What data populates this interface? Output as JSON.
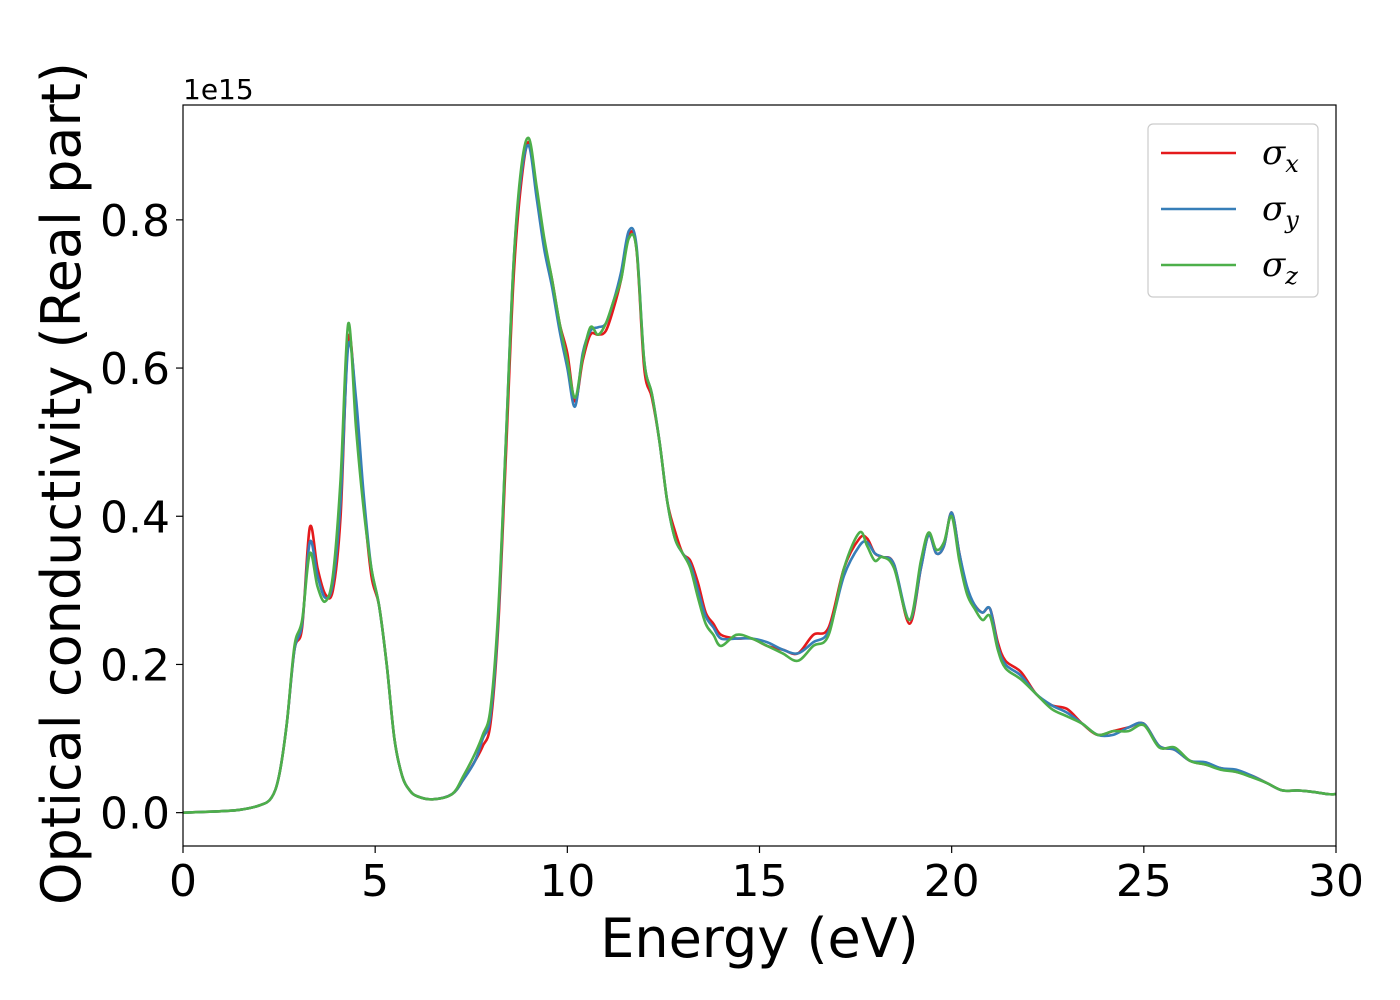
{
  "chart_data": {
    "type": "line",
    "title": "",
    "xlabel": "Energy (eV)",
    "ylabel": "Optical conductivity (Real part)",
    "y_offset_label": "1e15",
    "xlim": [
      0,
      30
    ],
    "ylim": [
      -0.045,
      0.955
    ],
    "x_ticks": [
      0,
      5,
      10,
      15,
      20,
      25,
      30
    ],
    "x_tick_labels": [
      "0",
      "5",
      "10",
      "15",
      "20",
      "25",
      "30"
    ],
    "y_ticks": [
      0.0,
      0.2,
      0.4,
      0.6,
      0.8
    ],
    "y_tick_labels": [
      "0.0",
      "0.2",
      "0.4",
      "0.6",
      "0.8"
    ],
    "grid": false,
    "legend_position": "top-right",
    "x": [
      0,
      1,
      1.5,
      2,
      2.3,
      2.5,
      2.7,
      2.9,
      3.1,
      3.3,
      3.5,
      3.7,
      3.9,
      4.1,
      4.3,
      4.5,
      4.7,
      4.9,
      5.1,
      5.3,
      5.5,
      5.7,
      5.9,
      6.1,
      6.5,
      7.0,
      7.3,
      7.6,
      7.8,
      8.0,
      8.2,
      8.4,
      8.6,
      8.8,
      9.0,
      9.2,
      9.4,
      9.6,
      9.8,
      10.0,
      10.2,
      10.4,
      10.6,
      10.8,
      11.0,
      11.2,
      11.4,
      11.6,
      11.8,
      12.0,
      12.2,
      12.4,
      12.6,
      12.8,
      13.0,
      13.2,
      13.4,
      13.6,
      13.8,
      14.0,
      14.4,
      14.8,
      15.2,
      15.6,
      16.0,
      16.4,
      16.8,
      17.2,
      17.6,
      17.8,
      18.0,
      18.2,
      18.5,
      18.9,
      19.2,
      19.4,
      19.6,
      19.8,
      20.0,
      20.2,
      20.4,
      20.6,
      20.8,
      21.0,
      21.2,
      21.4,
      21.8,
      22.2,
      22.6,
      23.0,
      23.4,
      23.8,
      24.2,
      24.6,
      25.0,
      25.4,
      25.8,
      26.2,
      26.6,
      27.0,
      27.4,
      27.8,
      28.2,
      28.6,
      29.0,
      29.4,
      29.8,
      30.0
    ],
    "series": [
      {
        "name": "σx",
        "color": "#e41a1c",
        "values": [
          0.0,
          0.002,
          0.004,
          0.01,
          0.02,
          0.05,
          0.12,
          0.22,
          0.25,
          0.385,
          0.33,
          0.295,
          0.3,
          0.4,
          0.64,
          0.55,
          0.42,
          0.32,
          0.28,
          0.2,
          0.1,
          0.05,
          0.03,
          0.022,
          0.018,
          0.025,
          0.045,
          0.07,
          0.09,
          0.12,
          0.25,
          0.48,
          0.72,
          0.85,
          0.905,
          0.84,
          0.77,
          0.72,
          0.66,
          0.62,
          0.555,
          0.61,
          0.645,
          0.645,
          0.65,
          0.68,
          0.72,
          0.78,
          0.76,
          0.6,
          0.56,
          0.5,
          0.42,
          0.38,
          0.35,
          0.34,
          0.31,
          0.27,
          0.255,
          0.24,
          0.235,
          0.235,
          0.225,
          0.22,
          0.215,
          0.24,
          0.25,
          0.33,
          0.37,
          0.37,
          0.35,
          0.345,
          0.335,
          0.255,
          0.33,
          0.375,
          0.35,
          0.36,
          0.405,
          0.35,
          0.3,
          0.28,
          0.27,
          0.275,
          0.23,
          0.205,
          0.19,
          0.16,
          0.145,
          0.14,
          0.12,
          0.105,
          0.11,
          0.115,
          0.12,
          0.09,
          0.085,
          0.07,
          0.065,
          0.06,
          0.055,
          0.05,
          0.04,
          0.03,
          0.03,
          0.028,
          0.025,
          0.025
        ]
      },
      {
        "name": "σy",
        "color": "#377eb8",
        "values": [
          0.0,
          0.002,
          0.004,
          0.01,
          0.02,
          0.05,
          0.12,
          0.22,
          0.255,
          0.365,
          0.32,
          0.29,
          0.31,
          0.42,
          0.63,
          0.56,
          0.43,
          0.33,
          0.28,
          0.2,
          0.1,
          0.05,
          0.03,
          0.022,
          0.018,
          0.025,
          0.045,
          0.07,
          0.1,
          0.13,
          0.26,
          0.5,
          0.74,
          0.86,
          0.9,
          0.83,
          0.76,
          0.71,
          0.65,
          0.6,
          0.548,
          0.62,
          0.65,
          0.655,
          0.66,
          0.69,
          0.73,
          0.785,
          0.765,
          0.61,
          0.565,
          0.5,
          0.42,
          0.37,
          0.35,
          0.335,
          0.3,
          0.265,
          0.25,
          0.235,
          0.235,
          0.235,
          0.23,
          0.22,
          0.215,
          0.23,
          0.245,
          0.32,
          0.36,
          0.365,
          0.35,
          0.345,
          0.335,
          0.26,
          0.33,
          0.375,
          0.35,
          0.36,
          0.405,
          0.35,
          0.305,
          0.28,
          0.27,
          0.275,
          0.225,
          0.2,
          0.185,
          0.16,
          0.145,
          0.135,
          0.12,
          0.105,
          0.105,
          0.115,
          0.12,
          0.09,
          0.085,
          0.07,
          0.068,
          0.06,
          0.058,
          0.05,
          0.04,
          0.03,
          0.03,
          0.028,
          0.025,
          0.025
        ]
      },
      {
        "name": "σz",
        "color": "#4daf4a",
        "values": [
          0.0,
          0.002,
          0.004,
          0.01,
          0.02,
          0.05,
          0.12,
          0.225,
          0.26,
          0.35,
          0.305,
          0.285,
          0.32,
          0.45,
          0.66,
          0.52,
          0.41,
          0.33,
          0.28,
          0.2,
          0.1,
          0.05,
          0.03,
          0.022,
          0.018,
          0.025,
          0.05,
          0.08,
          0.105,
          0.14,
          0.27,
          0.5,
          0.74,
          0.87,
          0.91,
          0.845,
          0.775,
          0.72,
          0.66,
          0.61,
          0.56,
          0.615,
          0.655,
          0.645,
          0.66,
          0.69,
          0.72,
          0.775,
          0.76,
          0.61,
          0.565,
          0.5,
          0.42,
          0.37,
          0.35,
          0.33,
          0.29,
          0.255,
          0.24,
          0.225,
          0.24,
          0.235,
          0.225,
          0.215,
          0.205,
          0.225,
          0.24,
          0.33,
          0.378,
          0.36,
          0.34,
          0.345,
          0.33,
          0.26,
          0.34,
          0.378,
          0.355,
          0.365,
          0.4,
          0.34,
          0.295,
          0.275,
          0.26,
          0.265,
          0.22,
          0.195,
          0.18,
          0.16,
          0.14,
          0.13,
          0.12,
          0.105,
          0.11,
          0.11,
          0.118,
          0.088,
          0.088,
          0.07,
          0.065,
          0.058,
          0.055,
          0.048,
          0.04,
          0.03,
          0.03,
          0.028,
          0.025,
          0.025
        ]
      }
    ]
  }
}
